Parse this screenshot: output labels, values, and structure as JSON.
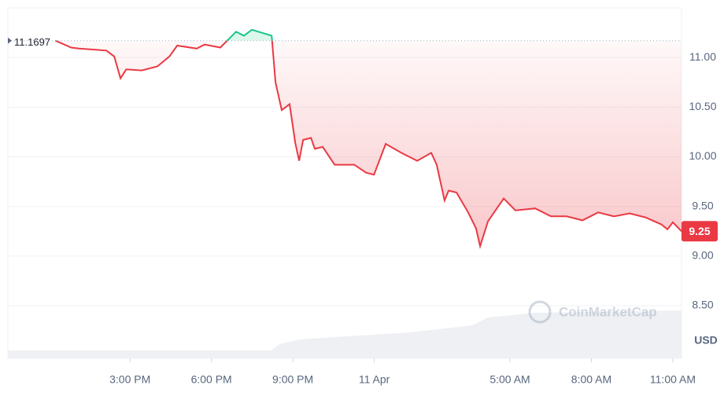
{
  "chart_data": {
    "type": "line",
    "currency": "USD",
    "watermark": "CoinMarketCap",
    "baseline": 11.1697,
    "colors": {
      "up": "#16c784",
      "down": "#ea3943"
    },
    "x": [
      12.25,
      12.83,
      13.12,
      14.13,
      14.42,
      14.65,
      14.86,
      15.43,
      16.01,
      16.45,
      16.74,
      17.46,
      17.75,
      18.33,
      18.62,
      18.91,
      19.2,
      19.49,
      20.22,
      20.36,
      20.59,
      20.88,
      21.09,
      21.23,
      21.38,
      21.67,
      21.81,
      22.1,
      22.54,
      23.26,
      23.7,
      23.99,
      24.42,
      25.0,
      25.58,
      26.1,
      26.3,
      26.59,
      26.74,
      27.03,
      27.46,
      27.75,
      27.9,
      28.19,
      28.77,
      29.2,
      29.93,
      30.51,
      31.09,
      31.67,
      32.25,
      32.83,
      33.41,
      33.99,
      34.57,
      34.8,
      35.0,
      35.32
    ],
    "values": [
      11.17,
      11.1,
      11.09,
      11.07,
      11.01,
      10.79,
      10.88,
      10.87,
      10.91,
      11.01,
      11.12,
      11.09,
      11.13,
      11.1,
      11.18,
      11.26,
      11.22,
      11.28,
      11.22,
      10.75,
      10.47,
      10.53,
      10.14,
      9.96,
      10.17,
      10.19,
      10.08,
      10.1,
      9.92,
      9.92,
      9.84,
      9.82,
      10.13,
      10.04,
      9.96,
      10.04,
      9.92,
      9.56,
      9.66,
      9.64,
      9.44,
      9.28,
      9.1,
      9.35,
      9.58,
      9.46,
      9.48,
      9.4,
      9.4,
      9.36,
      9.44,
      9.4,
      9.43,
      9.39,
      9.32,
      9.27,
      9.34,
      9.25
    ],
    "xlim": [
      10.5,
      35.32
    ],
    "ylim": [
      7.97,
      11.5
    ],
    "xticks": [
      {
        "value": 15,
        "label": "3:00 PM"
      },
      {
        "value": 18,
        "label": "6:00 PM"
      },
      {
        "value": 21,
        "label": "9:00 PM"
      },
      {
        "value": 24,
        "label": "11 Apr"
      },
      {
        "value": 29,
        "label": "5:00 AM"
      },
      {
        "value": 32,
        "label": "8:00 AM"
      },
      {
        "value": 35,
        "label": "11:00 AM"
      }
    ],
    "yticks": [
      {
        "value": 8.5,
        "label": "8.50"
      },
      {
        "value": 9,
        "label": "9.00"
      },
      {
        "value": 9.5,
        "label": "9.50"
      },
      {
        "value": 10,
        "label": "10.00"
      },
      {
        "value": 10.5,
        "label": "10.50"
      },
      {
        "value": 11,
        "label": "11.00"
      }
    ],
    "grid": true
  }
}
